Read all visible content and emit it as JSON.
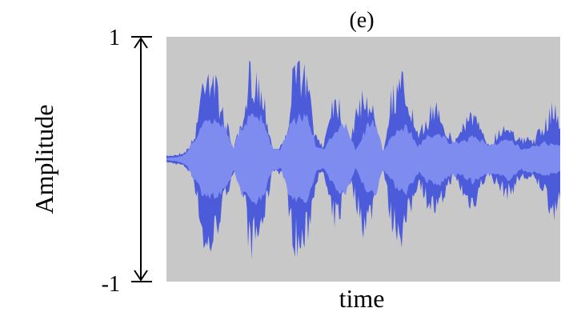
{
  "chart_data": {
    "type": "area",
    "title": "(e)",
    "xlabel": "time",
    "ylabel": "Amplitude",
    "ylim": [
      -1,
      1
    ],
    "yticks": [
      "1",
      "-1"
    ],
    "background": "#c8c8c8",
    "colors": {
      "envelope": "#4c5bd9",
      "rms": "#7e8cf0"
    },
    "envelope": {
      "x": [
        0.0,
        0.03,
        0.05,
        0.07,
        0.08,
        0.1,
        0.12,
        0.14,
        0.17,
        0.2,
        0.21,
        0.23,
        0.25,
        0.27,
        0.3,
        0.32,
        0.34,
        0.36,
        0.38,
        0.4,
        0.42,
        0.44,
        0.46,
        0.48,
        0.5,
        0.52,
        0.54,
        0.55,
        0.57,
        0.6,
        0.62,
        0.64,
        0.66,
        0.69,
        0.71,
        0.73,
        0.76,
        0.78,
        0.8,
        0.82,
        0.85,
        0.87,
        0.9,
        0.93,
        0.96,
        0.98,
        1.0
      ],
      "peak": [
        0.03,
        0.05,
        0.08,
        0.2,
        0.45,
        0.95,
        0.8,
        0.5,
        0.12,
        0.4,
        0.85,
        0.8,
        0.55,
        0.1,
        0.15,
        0.75,
        0.92,
        0.7,
        0.2,
        0.15,
        0.6,
        0.55,
        0.15,
        0.4,
        0.65,
        0.55,
        0.12,
        0.08,
        0.6,
        0.75,
        0.5,
        0.2,
        0.4,
        0.55,
        0.3,
        0.15,
        0.4,
        0.45,
        0.25,
        0.15,
        0.3,
        0.35,
        0.18,
        0.2,
        0.3,
        0.55,
        0.35
      ]
    },
    "rms": {
      "x": [
        0.0,
        0.03,
        0.05,
        0.07,
        0.09,
        0.11,
        0.13,
        0.15,
        0.17,
        0.19,
        0.21,
        0.24,
        0.27,
        0.29,
        0.31,
        0.34,
        0.36,
        0.38,
        0.4,
        0.43,
        0.46,
        0.48,
        0.51,
        0.53,
        0.55,
        0.58,
        0.61,
        0.64,
        0.66,
        0.69,
        0.72,
        0.75,
        0.78,
        0.81,
        0.84,
        0.87,
        0.9,
        0.93,
        0.96,
        1.0
      ],
      "peak": [
        0.01,
        0.02,
        0.05,
        0.18,
        0.3,
        0.35,
        0.35,
        0.3,
        0.1,
        0.3,
        0.38,
        0.38,
        0.1,
        0.08,
        0.3,
        0.4,
        0.38,
        0.12,
        0.08,
        0.28,
        0.3,
        0.08,
        0.3,
        0.34,
        0.08,
        0.25,
        0.3,
        0.12,
        0.2,
        0.25,
        0.15,
        0.15,
        0.22,
        0.14,
        0.15,
        0.18,
        0.1,
        0.12,
        0.15,
        0.12
      ]
    }
  }
}
